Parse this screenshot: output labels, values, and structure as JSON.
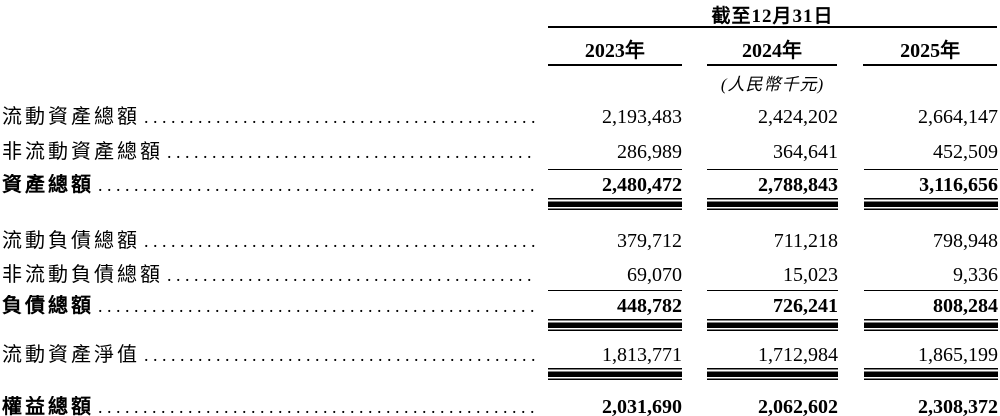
{
  "table": {
    "header": {
      "title": "截至12月31日",
      "columns": [
        "2023年",
        "2024年",
        "2025年"
      ],
      "unit_note": "(人民幣千元)"
    },
    "rows": [
      {
        "label": "流動資產總額",
        "values": [
          "2,193,483",
          "2,424,202",
          "2,664,147"
        ],
        "bold": false
      },
      {
        "label": "非流動資產總額",
        "values": [
          "286,989",
          "364,641",
          "452,509"
        ],
        "bold": false
      },
      {
        "label": "資產總額",
        "values": [
          "2,480,472",
          "2,788,843",
          "3,116,656"
        ],
        "bold": true
      },
      {
        "label": "流動負債總額",
        "values": [
          "379,712",
          "711,218",
          "798,948"
        ],
        "bold": false
      },
      {
        "label": "非流動負債總額",
        "values": [
          "69,070",
          "15,023",
          "9,336"
        ],
        "bold": false
      },
      {
        "label": "負債總額",
        "values": [
          "448,782",
          "726,241",
          "808,284"
        ],
        "bold": true
      },
      {
        "label": "流動資產淨值",
        "values": [
          "1,813,771",
          "1,712,984",
          "1,865,199"
        ],
        "bold": false
      },
      {
        "label": "權益總額",
        "values": [
          "2,031,690",
          "2,062,602",
          "2,308,372"
        ],
        "bold": true
      }
    ],
    "colors": {
      "text": "#000000",
      "background": "#ffffff",
      "rule": "#000000"
    }
  }
}
